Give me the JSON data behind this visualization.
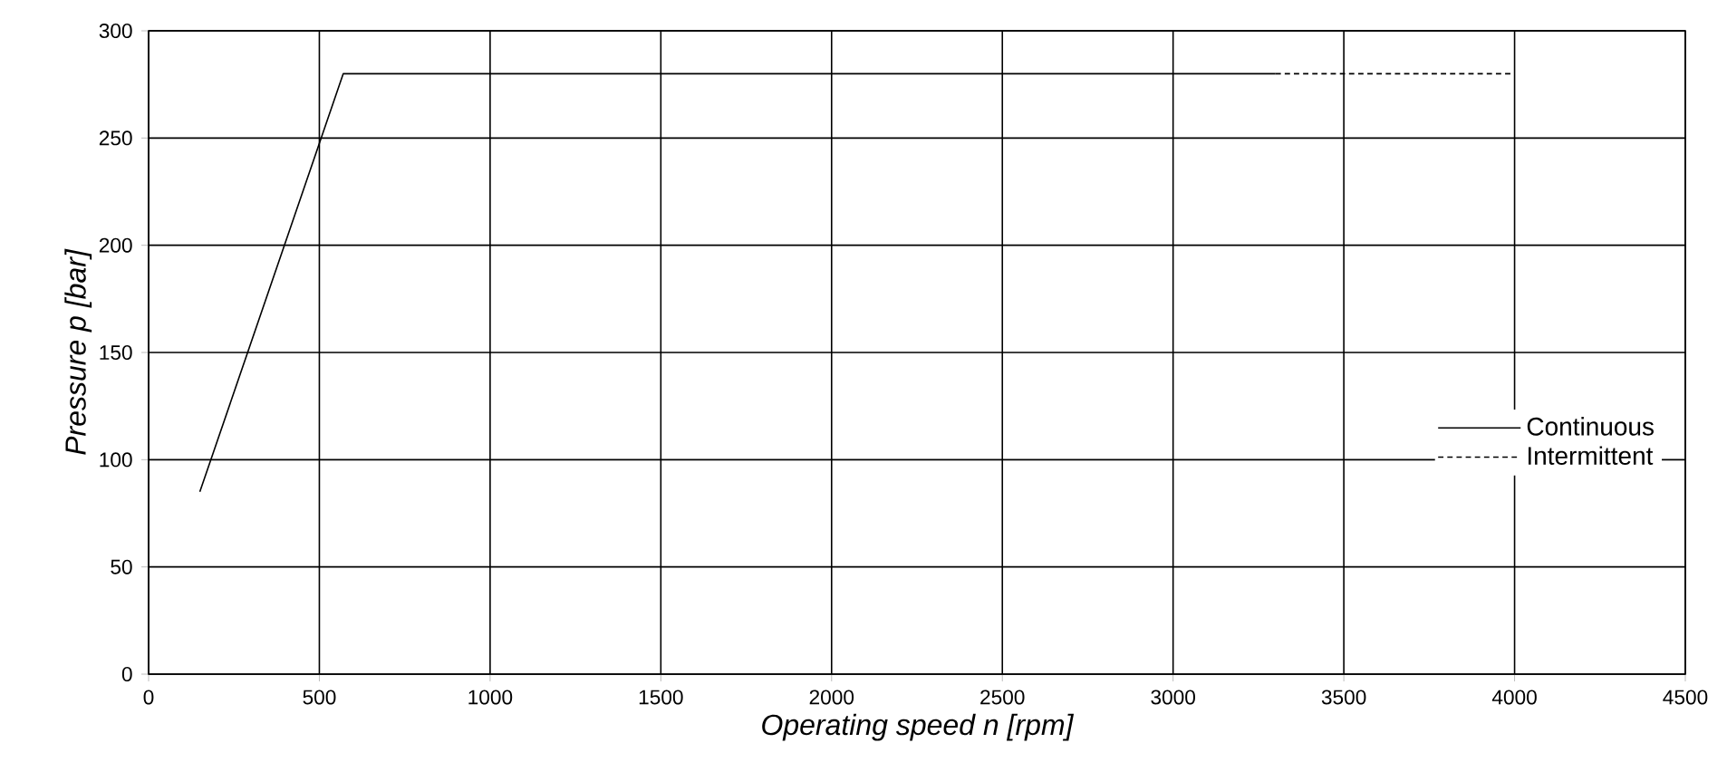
{
  "chart_data": {
    "type": "line",
    "xlabel": "Operating speed n [rpm]",
    "ylabel": "Pressure p [bar]",
    "xlim": [
      0,
      4500
    ],
    "ylim": [
      0,
      300
    ],
    "xticks": [
      0,
      500,
      1000,
      1500,
      2000,
      2500,
      3000,
      3500,
      4000,
      4500
    ],
    "yticks": [
      0,
      50,
      100,
      150,
      200,
      250,
      300
    ],
    "grid": true,
    "legend": "right",
    "marker": "none",
    "series": [
      {
        "name": "Continuous",
        "color": "#000000",
        "line_style": "solid",
        "x": [
          150,
          570,
          3300
        ],
        "values": [
          85,
          280,
          280
        ]
      },
      {
        "name": "Intermittent",
        "color": "#000000",
        "line_style": "dashed",
        "x": [
          3300,
          4000
        ],
        "values": [
          280,
          280
        ]
      }
    ]
  }
}
